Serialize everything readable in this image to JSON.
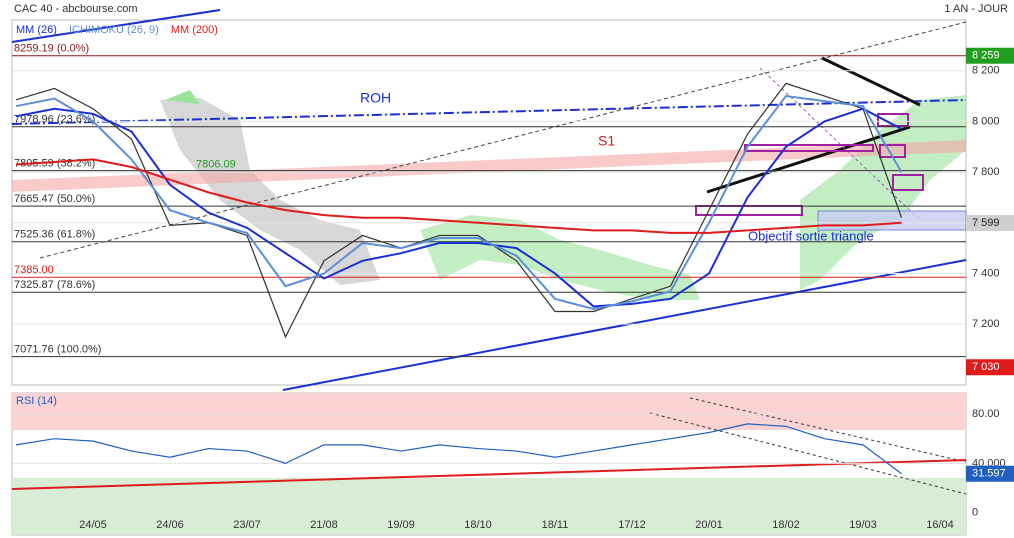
{
  "header": {
    "title": "CAC 40 - abcbourse.com",
    "period": "1 AN - JOUR"
  },
  "annotations": [
    "ROH",
    "S1",
    "Objectif sortie triangle"
  ],
  "chart_data": [
    {
      "type": "line",
      "categories": [
        null,
        null,
        "24/05",
        null,
        "24/06",
        null,
        "23/07",
        null,
        "21/08",
        null,
        "19/09",
        null,
        "18/10",
        null,
        "18/11",
        null,
        "17/12",
        null,
        "20/01",
        null,
        "18/02",
        null,
        "19/03",
        null,
        "16/04"
      ],
      "series": [
        {
          "color": "#333333",
          "values": [
            8085,
            8130,
            8050,
            7930,
            7590,
            7600,
            7550,
            7150,
            7450,
            7550,
            7500,
            7550,
            7550,
            7450,
            7250,
            7250,
            7300,
            7350,
            7650,
            7950,
            8150,
            8100,
            8050,
            7620,
            null
          ]
        },
        {
          "name": "MM (26)",
          "color": "#1a2fd6",
          "values": [
            8020,
            8050,
            8030,
            7960,
            7750,
            7640,
            7580,
            7480,
            7380,
            7450,
            7480,
            7520,
            7520,
            7500,
            7400,
            7270,
            7280,
            7300,
            7400,
            7700,
            7900,
            8000,
            8050,
            7970,
            null
          ]
        },
        {
          "name": "ICHIMOKU (26, 9)",
          "color": "#5b8fd9",
          "values": [
            8060,
            8090,
            8000,
            7850,
            7650,
            7600,
            7560,
            7350,
            7400,
            7520,
            7500,
            7540,
            7540,
            7470,
            7300,
            7260,
            7290,
            7330,
            7600,
            7900,
            8100,
            8080,
            8060,
            7800,
            null
          ]
        },
        {
          "name": "MM (200)",
          "color": "#e01b1b",
          "values": [
            7830,
            7840,
            7850,
            7820,
            7770,
            7720,
            7680,
            7650,
            7630,
            7620,
            7620,
            7610,
            7600,
            7590,
            7580,
            7570,
            7570,
            7560,
            7560,
            7570,
            7580,
            7590,
            7590,
            7600,
            null
          ]
        }
      ],
      "ylim": [
        6960,
        8400
      ],
      "yticks": [
        {
          "value": 7200,
          "label": "7 200"
        },
        {
          "value": 7400,
          "label": "7 400"
        },
        {
          "value": 7600,
          "label": "7 600"
        },
        {
          "value": 7800,
          "label": "7 800"
        },
        {
          "value": 8000,
          "label": "8 000"
        },
        {
          "value": 8200,
          "label": "8 200"
        }
      ],
      "levels": [
        {
          "value": 8259.19,
          "label": "8259.19 (0.0%)",
          "color": "#8b1a1a"
        },
        {
          "value": 7978.96,
          "label": "7978.96 (23.6%)",
          "color": "#333333"
        },
        {
          "value": 7805.59,
          "label": "7805.59 (38.2%)",
          "color": "#333333"
        },
        {
          "value": 7665.47,
          "label": "7665.47 (50.0%)",
          "color": "#333333"
        },
        {
          "value": 7525.36,
          "label": "7525.36 (61.8%)",
          "color": "#333333"
        },
        {
          "value": 7385.0,
          "label": "7385.00",
          "color": "#e01b1b"
        },
        {
          "value": 7325.87,
          "label": "7325.87 (78.6%)",
          "color": "#333333"
        },
        {
          "value": 7071.76,
          "label": "7071.76 (100.0%)",
          "color": "#333333"
        }
      ],
      "price_marks": [
        {
          "value": 8259,
          "label": "8 259",
          "color": "#1f9e1f"
        },
        {
          "value": 7599,
          "label": "7 599",
          "color": "#cfcfcf"
        },
        {
          "value": 7030,
          "label": "7 030",
          "color": "#e01b1b"
        }
      ],
      "kijun_label": {
        "value": 7806.09,
        "color": "#1f9e1f"
      }
    },
    {
      "type": "line",
      "title": "RSI (14)",
      "series": [
        {
          "color": "#2060c0",
          "values": [
            55,
            60,
            58,
            50,
            45,
            52,
            50,
            40,
            55,
            55,
            50,
            55,
            52,
            50,
            45,
            50,
            55,
            60,
            65,
            72,
            70,
            60,
            55,
            31.597,
            null
          ]
        }
      ],
      "ylim": [
        -18,
        97
      ],
      "yticks": [
        0,
        {
          "value": 40,
          "label": "40.000"
        },
        {
          "value": 80,
          "label": "80.00"
        }
      ]
    }
  ]
}
